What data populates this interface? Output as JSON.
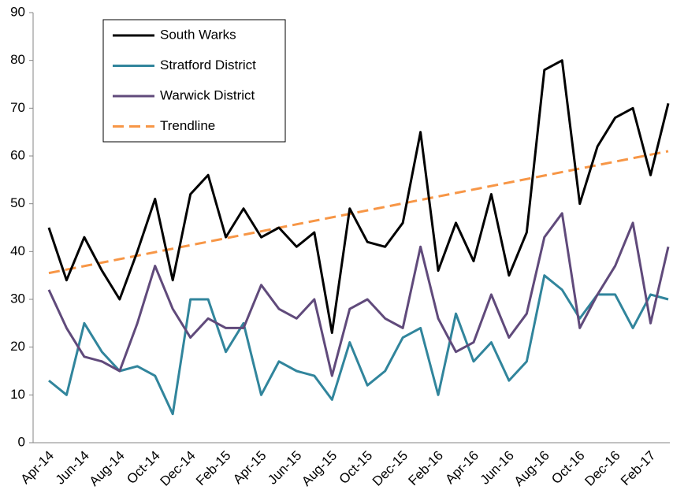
{
  "chart_data": {
    "type": "line",
    "categories": [
      "Apr-14",
      null,
      "Jun-14",
      null,
      "Aug-14",
      null,
      "Oct-14",
      null,
      "Dec-14",
      null,
      "Feb-15",
      null,
      "Apr-15",
      null,
      "Jun-15",
      null,
      "Aug-15",
      null,
      "Oct-15",
      null,
      "Dec-15",
      null,
      "Feb-16",
      null,
      "Apr-16",
      null,
      "Jun-16",
      null,
      "Aug-16",
      null,
      "Oct-16",
      null,
      "Dec-16",
      null,
      "Feb-17",
      null
    ],
    "series": [
      {
        "name": "South Warks",
        "color": "#000000",
        "values": [
          45,
          34,
          43,
          36,
          30,
          40,
          51,
          34,
          52,
          56,
          43,
          49,
          43,
          45,
          41,
          44,
          23,
          49,
          42,
          41,
          46,
          65,
          36,
          46,
          38,
          52,
          35,
          44,
          78,
          80,
          50,
          62,
          68,
          70,
          56,
          71
        ]
      },
      {
        "name": "Stratford District",
        "color": "#31859c",
        "values": [
          13,
          10,
          25,
          19,
          15,
          16,
          14,
          6,
          30,
          30,
          19,
          25,
          10,
          17,
          15,
          14,
          9,
          21,
          12,
          15,
          22,
          24,
          10,
          27,
          17,
          21,
          13,
          17,
          35,
          32,
          26,
          31,
          31,
          24,
          31,
          30
        ]
      },
      {
        "name": "Warwick District",
        "color": "#604a7b",
        "values": [
          32,
          24,
          18,
          17,
          15,
          25,
          37,
          28,
          22,
          26,
          24,
          24,
          33,
          28,
          26,
          30,
          14,
          28,
          30,
          26,
          24,
          41,
          26,
          19,
          21,
          31,
          22,
          27,
          43,
          48,
          24,
          31,
          37,
          46,
          25,
          41
        ]
      }
    ],
    "trendline": {
      "name": "Trendline",
      "color": "#f79646",
      "start": 35.5,
      "end": 61
    },
    "ylim": [
      0,
      90
    ],
    "yticks": [
      0,
      10,
      20,
      30,
      40,
      50,
      60,
      70,
      80,
      90
    ],
    "grid": false
  }
}
